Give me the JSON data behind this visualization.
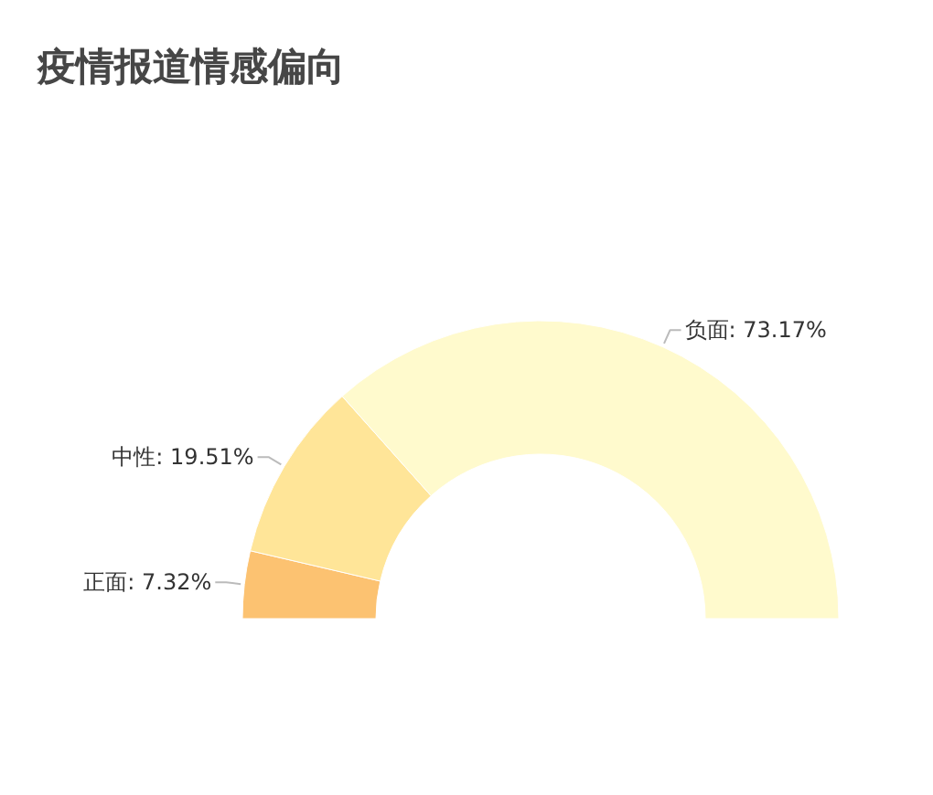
{
  "chart_data": {
    "type": "donut",
    "title": "疫情报道情感偏向",
    "categories": [
      "正面",
      "中性",
      "负面"
    ],
    "values": [
      7.32,
      19.51,
      73.17
    ],
    "colors": [
      "#fcc271",
      "#ffe598",
      "#fffacd"
    ],
    "value_labels": [
      "7.32%",
      "19.51%",
      "73.17%"
    ]
  }
}
